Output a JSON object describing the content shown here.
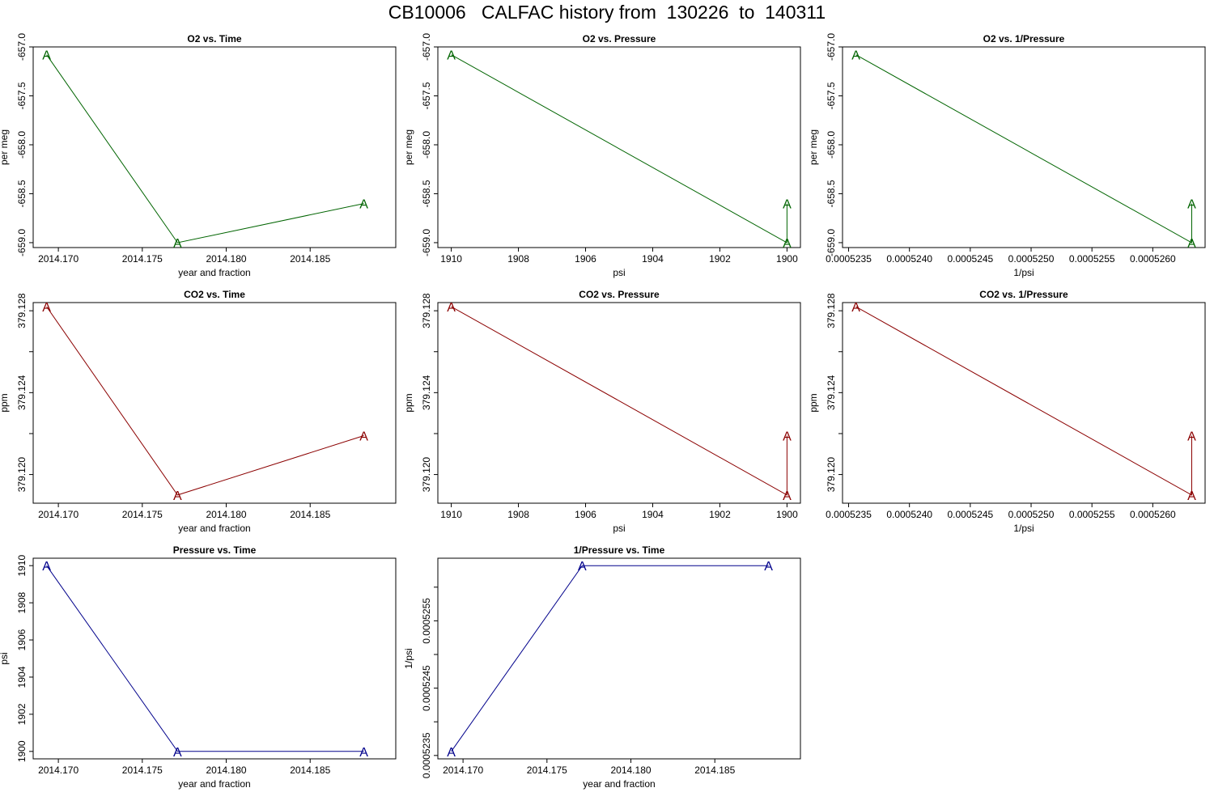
{
  "page_title": "CB10006   CALFAC history from  130226  to  140311",
  "colors": {
    "o2": "#006400",
    "co2": "#8b0000",
    "pressure": "#00008b",
    "axis": "#000000"
  },
  "chart_data": [
    {
      "id": "o2-vs-time",
      "type": "line",
      "title": "O2 vs. Time",
      "xlabel": "year and fraction",
      "ylabel": "per meg",
      "x": [
        2014.1693,
        2014.1771,
        2014.1882
      ],
      "y": [
        -657.08,
        -659.0,
        -658.6
      ],
      "point_label": "A",
      "color_key": "o2",
      "xlim": [
        2014.1685,
        2014.1901
      ],
      "ylim": [
        -659.05,
        -657.0
      ],
      "xticks": [
        2014.17,
        2014.175,
        2014.18,
        2014.185
      ],
      "xtick_labels": [
        "2014.170",
        "2014.175",
        "2014.180",
        "2014.185"
      ],
      "yticks": [
        -657.0,
        -657.5,
        -658.0,
        -658.5,
        -659.0
      ],
      "ytick_labels": [
        "-657.0",
        "-657.5",
        "-658.0",
        "-658.5",
        "-659.0"
      ]
    },
    {
      "id": "o2-vs-pressure",
      "type": "line",
      "title": "O2 vs. Pressure",
      "xlabel": "psi",
      "ylabel": "per meg",
      "x": [
        1910,
        1900,
        1900
      ],
      "y": [
        -657.08,
        -659.0,
        -658.6
      ],
      "point_label": "A",
      "color_key": "o2",
      "xlim": [
        1910.4,
        1899.6
      ],
      "ylim": [
        -659.05,
        -657.0
      ],
      "xticks": [
        1910,
        1908,
        1906,
        1904,
        1902,
        1900
      ],
      "xtick_labels": [
        "1910",
        "1908",
        "1906",
        "1904",
        "1902",
        "1900"
      ],
      "yticks": [
        -657.0,
        -657.5,
        -658.0,
        -658.5,
        -659.0
      ],
      "ytick_labels": [
        "-657.0",
        "-657.5",
        "-658.0",
        "-658.5",
        "-659.0"
      ]
    },
    {
      "id": "o2-vs-inv-pressure",
      "type": "line",
      "title": "O2 vs. 1/Pressure",
      "xlabel": "1/psi",
      "ylabel": "per meg",
      "x": [
        0.00052356,
        0.00052632,
        0.00052632
      ],
      "y": [
        -657.08,
        -659.0,
        -658.6
      ],
      "point_label": "A",
      "color_key": "o2",
      "xlim": [
        0.00052345,
        0.00052643
      ],
      "ylim": [
        -659.05,
        -657.0
      ],
      "xticks": [
        0.0005235,
        0.000524,
        0.0005245,
        0.000525,
        0.0005255,
        0.000526
      ],
      "xtick_labels": [
        "0.0005235",
        "0.0005240",
        "0.0005245",
        "0.0005250",
        "0.0005255",
        "0.0005260"
      ],
      "yticks": [
        -657.0,
        -657.5,
        -658.0,
        -658.5,
        -659.0
      ],
      "ytick_labels": [
        "-657.0",
        "-657.5",
        "-658.0",
        "-658.5",
        "-659.0"
      ]
    },
    {
      "id": "co2-vs-time",
      "type": "line",
      "title": "CO2 vs. Time",
      "xlabel": "year and fraction",
      "ylabel": "ppm",
      "x": [
        2014.1693,
        2014.1771,
        2014.1882
      ],
      "y": [
        379.1282,
        379.119,
        379.1219
      ],
      "point_label": "A",
      "color_key": "co2",
      "xlim": [
        2014.1685,
        2014.1901
      ],
      "ylim": [
        379.1186,
        379.1284
      ],
      "xticks": [
        2014.17,
        2014.175,
        2014.18,
        2014.185
      ],
      "xtick_labels": [
        "2014.170",
        "2014.175",
        "2014.180",
        "2014.185"
      ],
      "yticks": [
        379.12,
        379.122,
        379.124,
        379.126,
        379.128
      ],
      "ytick_labels": [
        "379.120",
        "",
        "379.124",
        "",
        "379.128"
      ]
    },
    {
      "id": "co2-vs-pressure",
      "type": "line",
      "title": "CO2 vs. Pressure",
      "xlabel": "psi",
      "ylabel": "ppm",
      "x": [
        1910,
        1900,
        1900
      ],
      "y": [
        379.1282,
        379.119,
        379.1219
      ],
      "point_label": "A",
      "color_key": "co2",
      "xlim": [
        1910.4,
        1899.6
      ],
      "ylim": [
        379.1186,
        379.1284
      ],
      "xticks": [
        1910,
        1908,
        1906,
        1904,
        1902,
        1900
      ],
      "xtick_labels": [
        "1910",
        "1908",
        "1906",
        "1904",
        "1902",
        "1900"
      ],
      "yticks": [
        379.12,
        379.122,
        379.124,
        379.126,
        379.128
      ],
      "ytick_labels": [
        "379.120",
        "",
        "379.124",
        "",
        "379.128"
      ]
    },
    {
      "id": "co2-vs-inv-pressure",
      "type": "line",
      "title": "CO2 vs. 1/Pressure",
      "xlabel": "1/psi",
      "ylabel": "ppm",
      "x": [
        0.00052356,
        0.00052632,
        0.00052632
      ],
      "y": [
        379.1282,
        379.119,
        379.1219
      ],
      "point_label": "A",
      "color_key": "co2",
      "xlim": [
        0.00052345,
        0.00052643
      ],
      "ylim": [
        379.1186,
        379.1284
      ],
      "xticks": [
        0.0005235,
        0.000524,
        0.0005245,
        0.000525,
        0.0005255,
        0.000526
      ],
      "xtick_labels": [
        "0.0005235",
        "0.0005240",
        "0.0005245",
        "0.0005250",
        "0.0005255",
        "0.0005260"
      ],
      "yticks": [
        379.12,
        379.122,
        379.124,
        379.126,
        379.128
      ],
      "ytick_labels": [
        "379.120",
        "",
        "379.124",
        "",
        "379.128"
      ]
    },
    {
      "id": "pressure-vs-time",
      "type": "line",
      "title": "Pressure vs. Time",
      "xlabel": "year and fraction",
      "ylabel": "psi",
      "x": [
        2014.1693,
        2014.1771,
        2014.1882
      ],
      "y": [
        1910,
        1900,
        1900
      ],
      "point_label": "A",
      "color_key": "pressure",
      "xlim": [
        2014.1685,
        2014.1901
      ],
      "ylim": [
        1899.6,
        1910.4
      ],
      "xticks": [
        2014.17,
        2014.175,
        2014.18,
        2014.185
      ],
      "xtick_labels": [
        "2014.170",
        "2014.175",
        "2014.180",
        "2014.185"
      ],
      "yticks": [
        1900,
        1902,
        1904,
        1906,
        1908,
        1910
      ],
      "ytick_labels": [
        "1900",
        "1902",
        "1904",
        "1906",
        "1908",
        "1910"
      ]
    },
    {
      "id": "inv-pressure-vs-time",
      "type": "line",
      "title": "1/Pressure vs. Time",
      "xlabel": "year and fraction",
      "ylabel": "1/psi",
      "x": [
        2014.1693,
        2014.1771,
        2014.1882
      ],
      "y": [
        0.00052356,
        0.00052632,
        0.00052632
      ],
      "point_label": "A",
      "color_key": "pressure",
      "xlim": [
        2014.1685,
        2014.1901
      ],
      "ylim": [
        0.00052345,
        0.00052643
      ],
      "xticks": [
        2014.17,
        2014.175,
        2014.18,
        2014.185
      ],
      "xtick_labels": [
        "2014.170",
        "2014.175",
        "2014.180",
        "2014.185"
      ],
      "yticks": [
        0.0005235,
        0.000524,
        0.0005245,
        0.000525,
        0.0005255,
        0.000526
      ],
      "ytick_labels": [
        "0.0005235",
        "",
        "0.0005245",
        "",
        "0.0005255",
        ""
      ]
    }
  ]
}
